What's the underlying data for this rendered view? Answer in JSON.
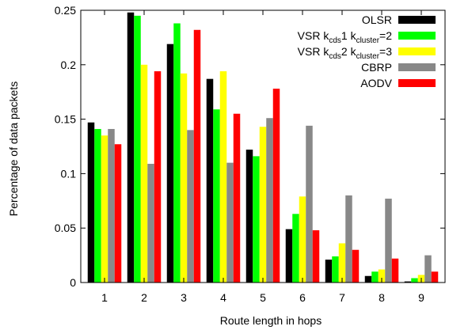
{
  "chart_data": {
    "type": "bar",
    "xlabel": "Route length in hops",
    "ylabel": "Percentage of data packets",
    "ylim": [
      0,
      0.25
    ],
    "yticks": [
      "0",
      "0.05",
      "0.1",
      "0.15",
      "0.2",
      "0.25"
    ],
    "categories": [
      "1",
      "2",
      "3",
      "4",
      "5",
      "6",
      "7",
      "8",
      "9"
    ],
    "legend_position": "top-right",
    "grid": false,
    "series": [
      {
        "name": "OLSR",
        "legend": {
          "base": "OLSR",
          "parts": []
        },
        "color": "#000000",
        "values": [
          0.147,
          0.248,
          0.219,
          0.187,
          0.122,
          0.049,
          0.021,
          0.006,
          0.001
        ]
      },
      {
        "name": "VSR k_cds1 k_cluster=2",
        "legend": {
          "base": "VSR k",
          "parts": [
            {
              "sub": "cds"
            },
            {
              "text": "1 k"
            },
            {
              "sub": "cluster"
            },
            {
              "text": "=2"
            }
          ]
        },
        "color": "#00ff00",
        "values": [
          0.141,
          0.245,
          0.238,
          0.159,
          0.116,
          0.063,
          0.024,
          0.01,
          0.004
        ]
      },
      {
        "name": "VSR k_cds2 k_cluster=3",
        "legend": {
          "base": "VSR k",
          "parts": [
            {
              "sub": "cds"
            },
            {
              "text": "2 k"
            },
            {
              "sub": "cluster"
            },
            {
              "text": "=3"
            }
          ]
        },
        "color": "#ffff00",
        "values": [
          0.135,
          0.2,
          0.192,
          0.194,
          0.143,
          0.079,
          0.036,
          0.012,
          0.007
        ]
      },
      {
        "name": "CBRP",
        "legend": {
          "base": "CBRP",
          "parts": []
        },
        "color": "#888888",
        "values": [
          0.141,
          0.109,
          0.14,
          0.11,
          0.151,
          0.144,
          0.08,
          0.077,
          0.025
        ]
      },
      {
        "name": "AODV",
        "legend": {
          "base": "AODV",
          "parts": []
        },
        "color": "#ff0000",
        "values": [
          0.127,
          0.194,
          0.232,
          0.155,
          0.178,
          0.048,
          0.03,
          0.022,
          0.01
        ]
      }
    ]
  }
}
